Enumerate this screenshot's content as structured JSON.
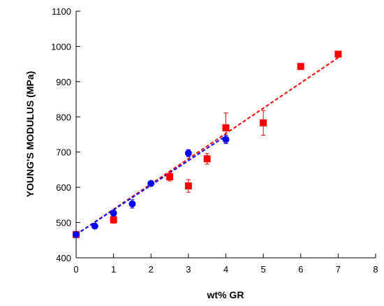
{
  "chart_data": {
    "type": "scatter",
    "xlabel": "wt% GR",
    "ylabel": "YOUNG'S MODULUS (MPa)",
    "xlim": [
      0,
      8
    ],
    "ylim": [
      400,
      1100
    ],
    "xticks": [
      "0",
      "1",
      "2",
      "3",
      "4",
      "5",
      "6",
      "7",
      "8"
    ],
    "yticks": [
      "400",
      "500",
      "600",
      "700",
      "800",
      "900",
      "1000",
      "1100"
    ],
    "grid": false,
    "series": [
      {
        "marker": "square",
        "color": "#ff0000",
        "points": [
          {
            "x": 0,
            "y": 466,
            "err": 0
          },
          {
            "x": 1,
            "y": 508,
            "err": 10
          },
          {
            "x": 2.5,
            "y": 630,
            "err": 12
          },
          {
            "x": 3,
            "y": 604,
            "err": 18
          },
          {
            "x": 3.5,
            "y": 681,
            "err": 15
          },
          {
            "x": 4,
            "y": 769,
            "err": 42
          },
          {
            "x": 5,
            "y": 783,
            "err": 35
          },
          {
            "x": 6,
            "y": 943,
            "err": 0
          },
          {
            "x": 7,
            "y": 978,
            "err": 0
          }
        ],
        "fit": {
          "x": [
            0,
            7
          ],
          "y": [
            466,
            968
          ]
        }
      },
      {
        "marker": "circle",
        "color": "#0000ff",
        "points": [
          {
            "x": 0,
            "y": 466,
            "err": 0
          },
          {
            "x": 0.5,
            "y": 490,
            "err": 0
          },
          {
            "x": 1,
            "y": 527,
            "err": 8
          },
          {
            "x": 1.5,
            "y": 553,
            "err": 12
          },
          {
            "x": 2,
            "y": 611,
            "err": 5
          },
          {
            "x": 3,
            "y": 697,
            "err": 10
          },
          {
            "x": 4,
            "y": 736,
            "err": 12
          }
        ],
        "fit": {
          "x": [
            0,
            4
          ],
          "y": [
            466,
            746
          ]
        }
      }
    ]
  }
}
